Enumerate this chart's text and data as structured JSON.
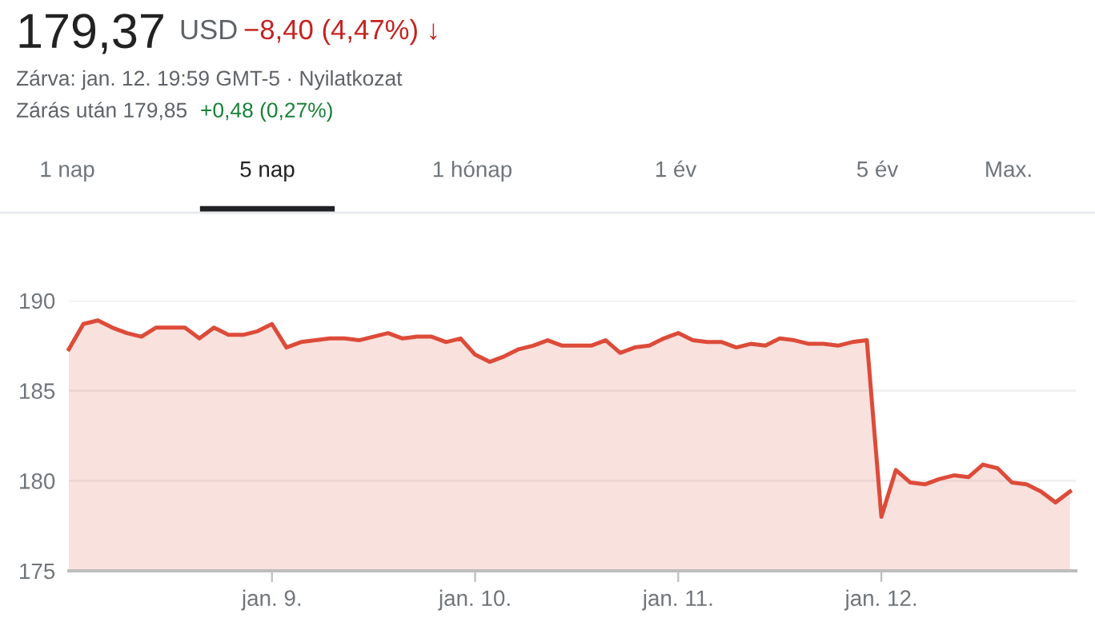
{
  "chart_data": {
    "type": "area",
    "title": "179,37",
    "annotations": [
      "USD",
      "−8,40 (4,47%) ↓",
      "Zárva: jan. 12. 19:59 GMT-5 · Nyilatkozat",
      "Zárás után 179,85",
      "+0,48 (0,27%)",
      "1 nap",
      "5 nap",
      "1 hónap",
      "1 év",
      "5 év",
      "Max."
    ],
    "categories": [
      null,
      null,
      null,
      null,
      null,
      null,
      null,
      null,
      null,
      null,
      null,
      null,
      null,
      null,
      "jan. 9.",
      null,
      null,
      null,
      null,
      null,
      null,
      null,
      null,
      null,
      null,
      null,
      null,
      null,
      "jan. 10.",
      null,
      null,
      null,
      null,
      null,
      null,
      null,
      null,
      null,
      null,
      null,
      null,
      null,
      "jan. 11.",
      null,
      null,
      null,
      null,
      null,
      null,
      null,
      null,
      null,
      null,
      null,
      null,
      null,
      "jan. 12.",
      null,
      null,
      null,
      null,
      null,
      null,
      null,
      null,
      null,
      null,
      null,
      null,
      null
    ],
    "series": [
      {
        "color": "#dd4b39",
        "values": [
          187.3,
          188.7,
          188.9,
          188.5,
          188.2,
          188.0,
          188.5,
          188.5,
          188.5,
          187.9,
          188.5,
          188.1,
          188.1,
          188.3,
          188.7,
          187.4,
          187.7,
          187.8,
          187.9,
          187.9,
          187.8,
          188.0,
          188.2,
          187.9,
          188.0,
          188.0,
          187.7,
          187.9,
          187.0,
          186.6,
          186.9,
          187.3,
          187.5,
          187.8,
          187.5,
          187.5,
          187.5,
          187.8,
          187.1,
          187.4,
          187.5,
          187.9,
          188.2,
          187.8,
          187.7,
          187.7,
          187.4,
          187.6,
          187.5,
          187.9,
          187.8,
          187.6,
          187.6,
          187.5,
          187.7,
          187.8,
          178.0,
          180.6,
          179.9,
          179.8,
          180.1,
          180.3,
          180.2,
          180.9,
          180.7,
          179.9,
          179.8,
          179.4,
          178.8,
          179.4
        ]
      }
    ],
    "ylim": [
      175,
      190
    ],
    "yticks": [
      175,
      180,
      185,
      190
    ],
    "grid": "y",
    "line_style": "solid"
  }
}
